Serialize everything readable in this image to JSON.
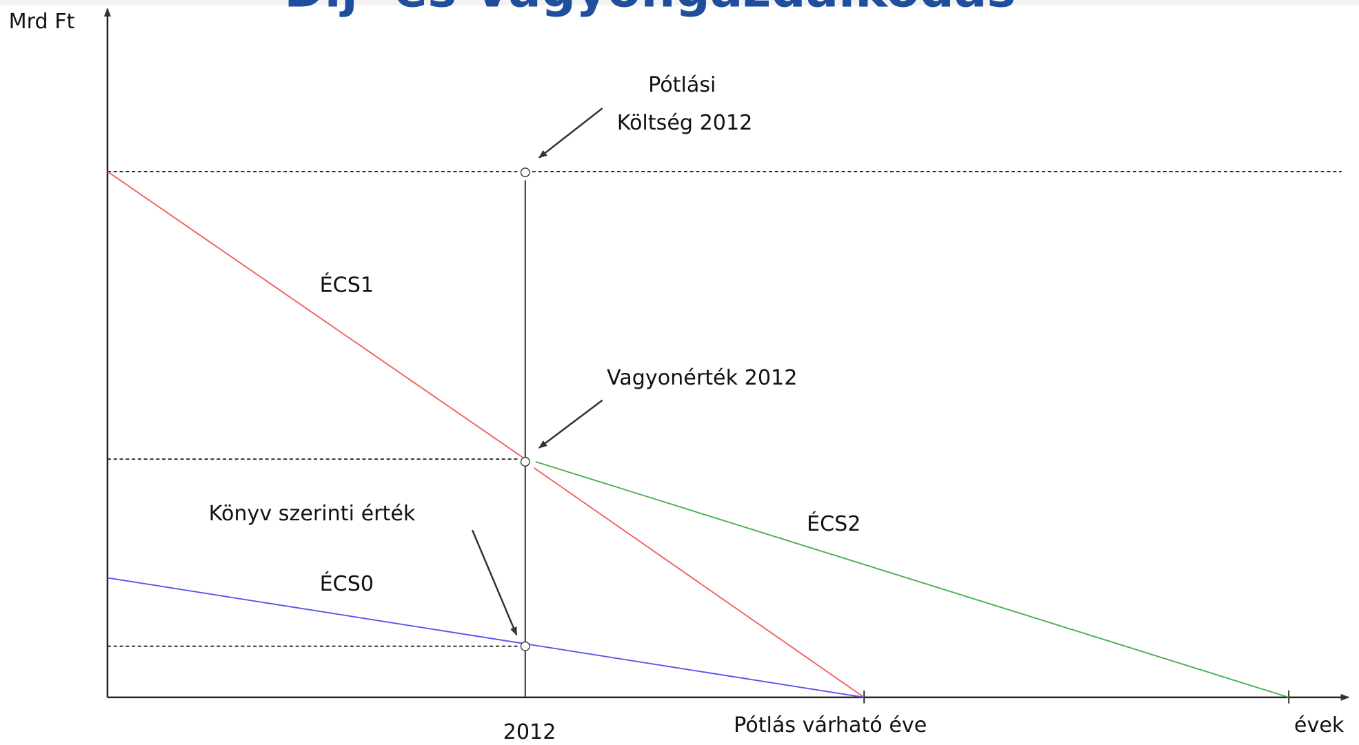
{
  "title": "Díj- és Vagyongazdálkodás",
  "axis": {
    "y_label": "Mrd Ft",
    "x_label": "évek",
    "x_tick_2012": "2012",
    "x_tick_replacement": "Pótlás várható éve"
  },
  "annotations": {
    "replacement_cost_line1": "Pótlási",
    "replacement_cost_line2": "Költség 2012",
    "asset_value": "Vagyonérték 2012",
    "book_value": "Könyv szerinti érték"
  },
  "lines": {
    "ecs1": "ÉCS1",
    "ecs2": "ÉCS2",
    "ecs0": "ÉCS0"
  }
}
